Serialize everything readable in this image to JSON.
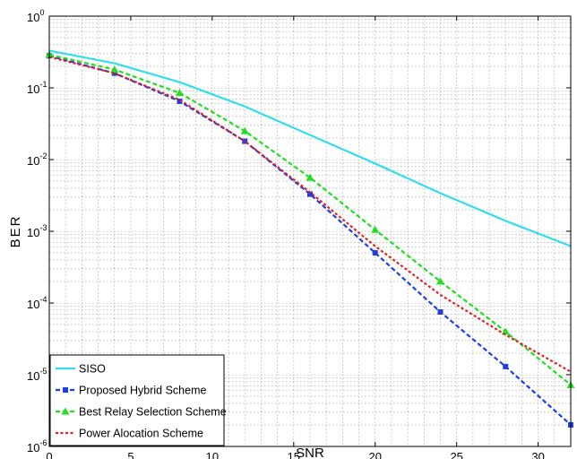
{
  "chart_data": {
    "type": "line",
    "title": "",
    "xlabel": "SNR",
    "ylabel": "BER",
    "xlim": [
      0,
      32
    ],
    "ylim": [
      1e-06,
      1
    ],
    "yscale": "log",
    "grid": true,
    "legend_position": "bottom-left",
    "xticks": [
      0,
      5,
      10,
      15,
      20,
      25,
      30
    ],
    "yticks": [
      {
        "value": 1e-06,
        "base": "10",
        "exp": "-6"
      },
      {
        "value": 1e-05,
        "base": "10",
        "exp": "-5"
      },
      {
        "value": 0.0001,
        "base": "10",
        "exp": "-4"
      },
      {
        "value": 0.001,
        "base": "10",
        "exp": "-3"
      },
      {
        "value": 0.01,
        "base": "10",
        "exp": "-2"
      },
      {
        "value": 0.1,
        "base": "10",
        "exp": "-1"
      },
      {
        "value": 1,
        "base": "10",
        "exp": "0"
      }
    ],
    "series": [
      {
        "name": "SISO",
        "color": "#33ddee",
        "dash": "solid",
        "marker": "none",
        "x": [
          0,
          4,
          8,
          12,
          16,
          20,
          24,
          28,
          32
        ],
        "y": [
          0.33,
          0.22,
          0.12,
          0.055,
          0.022,
          0.0088,
          0.0034,
          0.0014,
          0.00062
        ]
      },
      {
        "name": "Proposed Hybrid Scheme",
        "color": "#1f3fe0",
        "dash": "dashed",
        "marker": "square",
        "x": [
          0,
          4,
          8,
          12,
          16,
          20,
          24,
          28,
          32
        ],
        "y": [
          0.28,
          0.16,
          0.065,
          0.018,
          0.0033,
          0.0005,
          7.5e-05,
          1.3e-05,
          2e-06
        ]
      },
      {
        "name": "Best Relay Selection Scheme",
        "color": "#22dd22",
        "dash": "dashed",
        "marker": "triangle",
        "x": [
          0,
          4,
          8,
          12,
          16,
          20,
          24,
          28,
          32
        ],
        "y": [
          0.29,
          0.18,
          0.085,
          0.025,
          0.0056,
          0.00105,
          0.0002,
          4e-05,
          7.2e-06
        ]
      },
      {
        "name": "Power Alocation Scheme",
        "color": "#dd2222",
        "dash": "dotted",
        "marker": "none",
        "x": [
          0,
          4,
          8,
          12,
          16,
          20,
          24,
          28,
          32
        ],
        "y": [
          0.27,
          0.16,
          0.068,
          0.018,
          0.0035,
          0.00062,
          0.00013,
          3.6e-05,
          1.1e-05
        ]
      }
    ]
  }
}
